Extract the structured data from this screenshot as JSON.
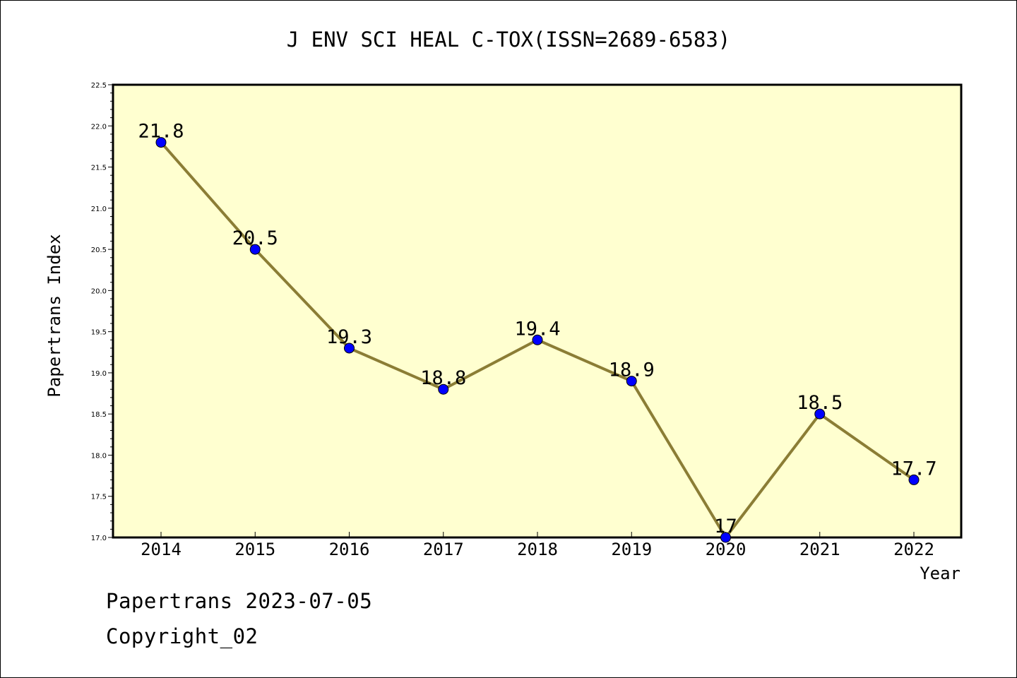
{
  "chart_data": {
    "type": "line",
    "title": "J ENV SCI HEAL C-TOX(ISSN=2689-6583)",
    "xlabel": "Year",
    "ylabel": "Papertrans Index",
    "categories": [
      "2014",
      "2015",
      "2016",
      "2017",
      "2018",
      "2019",
      "2020",
      "2021",
      "2022"
    ],
    "values": [
      21.8,
      20.5,
      19.3,
      18.8,
      19.4,
      18.9,
      17,
      18.5,
      17.7
    ],
    "data_labels": [
      "21.8",
      "20.5",
      "19.3",
      "18.8",
      "19.4",
      "18.9",
      "17",
      "18.5",
      "17.7"
    ],
    "ylim": [
      17.0,
      22.5
    ],
    "yticks": [
      "17.0",
      "17.5",
      "18.0",
      "18.5",
      "19.0",
      "19.5",
      "20.0",
      "20.5",
      "21.0",
      "21.5",
      "22.0",
      "22.5"
    ],
    "colors": {
      "plot_background": "#ffffd0",
      "line": "#8b7d35",
      "marker": "#0000ff"
    },
    "grid": false,
    "legend": "none"
  },
  "footer": {
    "line1": "Papertrans 2023-07-05",
    "line2": "Copyright_02"
  }
}
